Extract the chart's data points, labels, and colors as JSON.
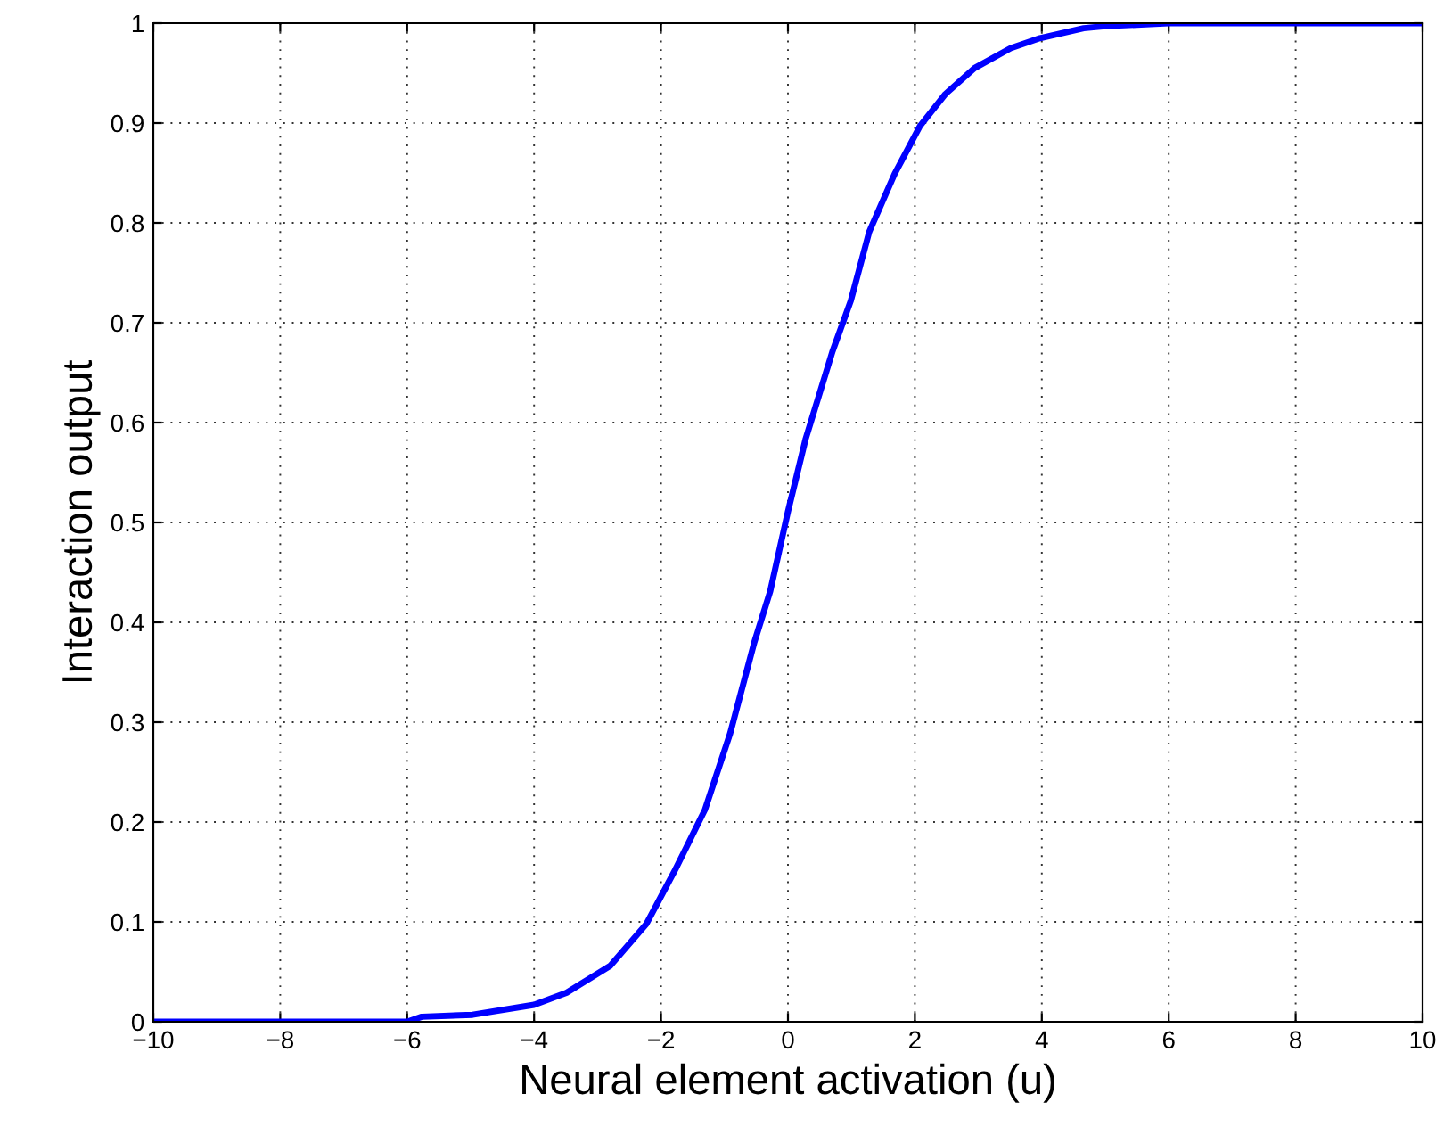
{
  "chart_data": {
    "type": "line",
    "xlabel": "Neural element activation (u)",
    "ylabel": "Interaction output",
    "series": [
      {
        "color": "#0000ff",
        "x": [
          -10,
          -6,
          -5.77,
          -4.97,
          -4,
          -3.49,
          -2.8,
          -2.23,
          -1.77,
          -1.31,
          -0.91,
          -0.53,
          -0.28,
          0,
          0.28,
          0.7,
          0.99,
          1.28,
          1.68,
          2.08,
          2.48,
          2.94,
          3.51,
          3.97,
          4.66,
          5,
          6,
          10
        ],
        "values": [
          0,
          0,
          0.005,
          0.007,
          0.017,
          0.029,
          0.056,
          0.098,
          0.153,
          0.212,
          0.289,
          0.38,
          0.431,
          0.511,
          0.584,
          0.671,
          0.722,
          0.791,
          0.849,
          0.897,
          0.929,
          0.955,
          0.975,
          0.985,
          0.995,
          0.997,
          1,
          1
        ]
      }
    ],
    "xlim": [
      -10,
      10
    ],
    "ylim": [
      0,
      1
    ],
    "xticks": [
      {
        "value": -10,
        "label": "−10"
      },
      {
        "value": -8,
        "label": "−8"
      },
      {
        "value": -6,
        "label": "−6"
      },
      {
        "value": -4,
        "label": "−4"
      },
      {
        "value": -2,
        "label": "−2"
      },
      0,
      2,
      4,
      6,
      8,
      10
    ],
    "yticks": [
      0,
      0.1,
      0.2,
      0.3,
      0.4,
      0.5,
      0.6,
      0.7,
      0.8,
      0.9,
      1
    ],
    "grid": true,
    "line_style": "solid",
    "marker": "none"
  }
}
